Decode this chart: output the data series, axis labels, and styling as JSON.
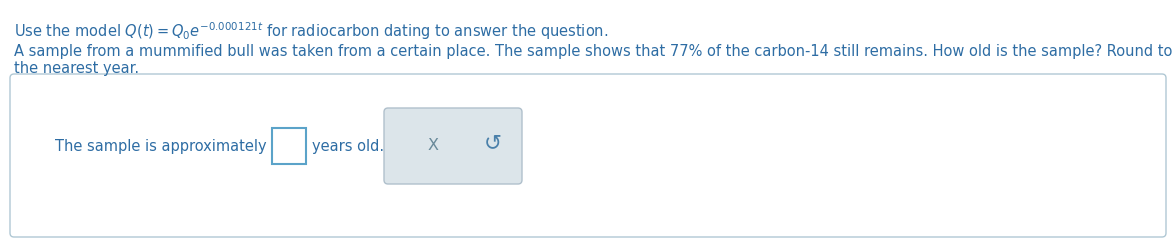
{
  "background_color": "#ffffff",
  "text_color": "#2e6da4",
  "body_color": "#2e6da4",
  "panel_border_color": "#b0c8d4",
  "input_border_color": "#5ba3c9",
  "btn_bg_color": "#dce5ea",
  "btn_border_color": "#b0c0cc",
  "x_color": "#6a8a9a",
  "undo_color": "#4a80aa",
  "line1_formula": "Use the model $Q(t) = Q_0e^{-0.000121t}$ for radiocarbon dating to answer the question.",
  "line2a": "A sample from a mummified bull was taken from a certain place. The sample shows that 77% of the carbon‑14 still remains. How old is the sample? Round to",
  "line2b": "the nearest year.",
  "answer_text": "The sample is approximately",
  "years_text": "years old.",
  "x_symbol": "X",
  "undo_symbol": "↺",
  "font_size": 10.5,
  "small_font": 9.5
}
